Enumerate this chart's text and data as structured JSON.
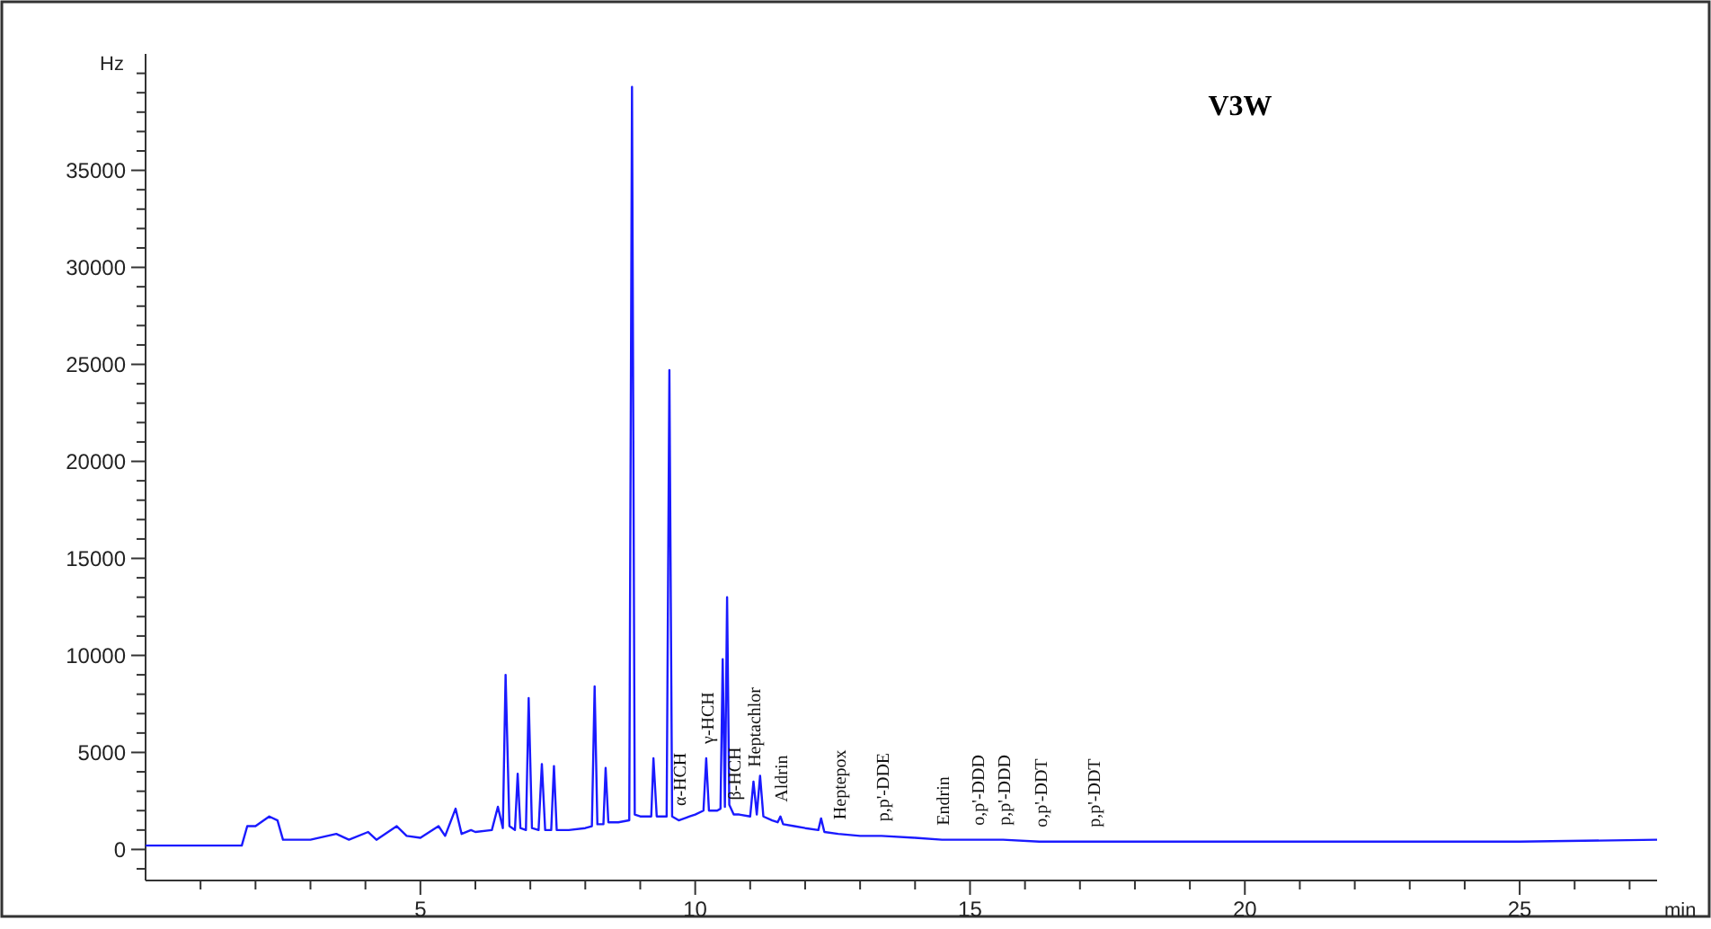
{
  "chart_data": {
    "type": "line",
    "title": "V3W",
    "xlabel": "min",
    "ylabel": "Hz",
    "xlim": [
      0,
      27.5
    ],
    "ylim": [
      -1600,
      41000
    ],
    "xticks": [
      {
        "value": 1,
        "label": null
      },
      {
        "value": 2,
        "label": null
      },
      {
        "value": 3,
        "label": null
      },
      {
        "value": 4,
        "label": null
      },
      5,
      {
        "value": 6,
        "label": null
      },
      {
        "value": 7,
        "label": null
      },
      {
        "value": 8,
        "label": null
      },
      {
        "value": 9,
        "label": null
      },
      10,
      {
        "value": 11,
        "label": null
      },
      {
        "value": 12,
        "label": null
      },
      {
        "value": 13,
        "label": null
      },
      {
        "value": 14,
        "label": null
      },
      15,
      {
        "value": 16,
        "label": null
      },
      {
        "value": 17,
        "label": null
      },
      {
        "value": 18,
        "label": null
      },
      {
        "value": 19,
        "label": null
      },
      20,
      {
        "value": 21,
        "label": null
      },
      {
        "value": 22,
        "label": null
      },
      {
        "value": 23,
        "label": null
      },
      {
        "value": 24,
        "label": null
      },
      25,
      {
        "value": 26,
        "label": null
      },
      {
        "value": 27,
        "label": null
      }
    ],
    "yticks": [
      {
        "value": -1000,
        "label": null
      },
      0,
      {
        "value": 1000,
        "label": null
      },
      {
        "value": 2000,
        "label": null
      },
      {
        "value": 3000,
        "label": null
      },
      {
        "value": 4000,
        "label": null
      },
      5000,
      {
        "value": 6000,
        "label": null
      },
      {
        "value": 7000,
        "label": null
      },
      {
        "value": 8000,
        "label": null
      },
      {
        "value": 9000,
        "label": null
      },
      10000,
      {
        "value": 11000,
        "label": null
      },
      {
        "value": 12000,
        "label": null
      },
      {
        "value": 13000,
        "label": null
      },
      {
        "value": 14000,
        "label": null
      },
      15000,
      {
        "value": 16000,
        "label": null
      },
      {
        "value": 17000,
        "label": null
      },
      {
        "value": 18000,
        "label": null
      },
      {
        "value": 19000,
        "label": null
      },
      20000,
      {
        "value": 21000,
        "label": null
      },
      {
        "value": 22000,
        "label": null
      },
      {
        "value": 23000,
        "label": null
      },
      {
        "value": 24000,
        "label": null
      },
      25000,
      {
        "value": 26000,
        "label": null
      },
      {
        "value": 27000,
        "label": null
      },
      {
        "value": 28000,
        "label": null
      },
      {
        "value": 29000,
        "label": null
      },
      30000,
      {
        "value": 31000,
        "label": null
      },
      {
        "value": 32000,
        "label": null
      },
      {
        "value": 33000,
        "label": null
      },
      {
        "value": 34000,
        "label": null
      },
      35000,
      {
        "value": 36000,
        "label": null
      },
      {
        "value": 37000,
        "label": null
      },
      {
        "value": 38000,
        "label": null
      },
      {
        "value": 39000,
        "label": null
      },
      {
        "value": 40000,
        "label": null
      }
    ],
    "grid": false,
    "marker": "none",
    "line_style": "solid",
    "series": [
      {
        "color": "#1a1aff",
        "x": [
          0,
          1,
          1.75,
          1.85,
          2.0,
          2.25,
          2.4,
          2.5,
          3.0,
          3.47,
          3.7,
          4.05,
          4.2,
          4.57,
          4.75,
          5.0,
          5.33,
          5.45,
          5.64,
          5.75,
          5.92,
          6.0,
          6.3,
          6.41,
          6.5,
          6.55,
          6.62,
          6.72,
          6.77,
          6.82,
          6.92,
          6.97,
          7.03,
          7.15,
          7.21,
          7.27,
          7.38,
          7.43,
          7.48,
          7.7,
          8.0,
          8.12,
          8.17,
          8.22,
          8.33,
          8.37,
          8.42,
          8.6,
          8.8,
          8.85,
          8.9,
          9.0,
          9.1,
          9.2,
          9.24,
          9.3,
          9.48,
          9.53,
          9.58,
          9.7,
          9.9,
          10.0,
          10.15,
          10.2,
          10.25,
          10.4,
          10.46,
          10.5,
          10.54,
          10.58,
          10.62,
          10.7,
          10.8,
          11.0,
          11.06,
          11.12,
          11.18,
          11.24,
          11.4,
          11.5,
          11.55,
          11.6,
          11.8,
          12.0,
          12.24,
          12.29,
          12.35,
          12.6,
          13.0,
          13.39,
          14.0,
          14.49,
          15.13,
          15.6,
          16.26,
          17.24,
          18.0,
          20.0,
          22.0,
          25.0,
          27.5
        ],
        "values": [
          200,
          200,
          200,
          1200,
          1200,
          1700,
          1500,
          500,
          500,
          800,
          500,
          900,
          500,
          1200,
          700,
          600,
          1200,
          700,
          2100,
          800,
          1000,
          900,
          1000,
          2200,
          1100,
          9000,
          1200,
          1000,
          3900,
          1100,
          1000,
          7800,
          1100,
          1000,
          4400,
          1000,
          1000,
          4300,
          1000,
          1000,
          1100,
          1200,
          8400,
          1300,
          1300,
          4200,
          1400,
          1400,
          1500,
          39300,
          1800,
          1700,
          1700,
          1700,
          4700,
          1700,
          1700,
          24700,
          1700,
          1500,
          1700,
          1800,
          2000,
          4700,
          2000,
          2000,
          2100,
          9800,
          2200,
          13000,
          2300,
          1800,
          1800,
          1700,
          3500,
          1800,
          3800,
          1700,
          1500,
          1400,
          1700,
          1300,
          1200,
          1100,
          1000,
          1600,
          900,
          800,
          700,
          700,
          600,
          500,
          500,
          500,
          400,
          400,
          400,
          400,
          400,
          400,
          500
        ]
      }
    ],
    "annotations": [
      {
        "text": "α-HCH",
        "x": 9.7,
        "y": 1500
      },
      {
        "text": "γ-HCH",
        "x": 10.2,
        "y": 4700
      },
      {
        "text": "β-HCH",
        "x": 10.7,
        "y": 1800
      },
      {
        "text": "Heptachlor",
        "x": 11.06,
        "y": 3500
      },
      {
        "text": "Aldrin",
        "x": 11.55,
        "y": 1700
      },
      {
        "text": "Heptepox",
        "x": 12.6,
        "y": 800
      },
      {
        "text": "p,p'-DDE",
        "x": 13.39,
        "y": 700
      },
      {
        "text": "Endrin",
        "x": 14.49,
        "y": 500
      },
      {
        "text": "o,p'-DDD",
        "x": 15.13,
        "y": 500
      },
      {
        "text": "p,p'-DDD",
        "x": 15.6,
        "y": 500
      },
      {
        "text": "o,p'-DDT",
        "x": 16.26,
        "y": 400
      },
      {
        "text": "p,p'-DDT",
        "x": 17.24,
        "y": 400
      }
    ]
  }
}
